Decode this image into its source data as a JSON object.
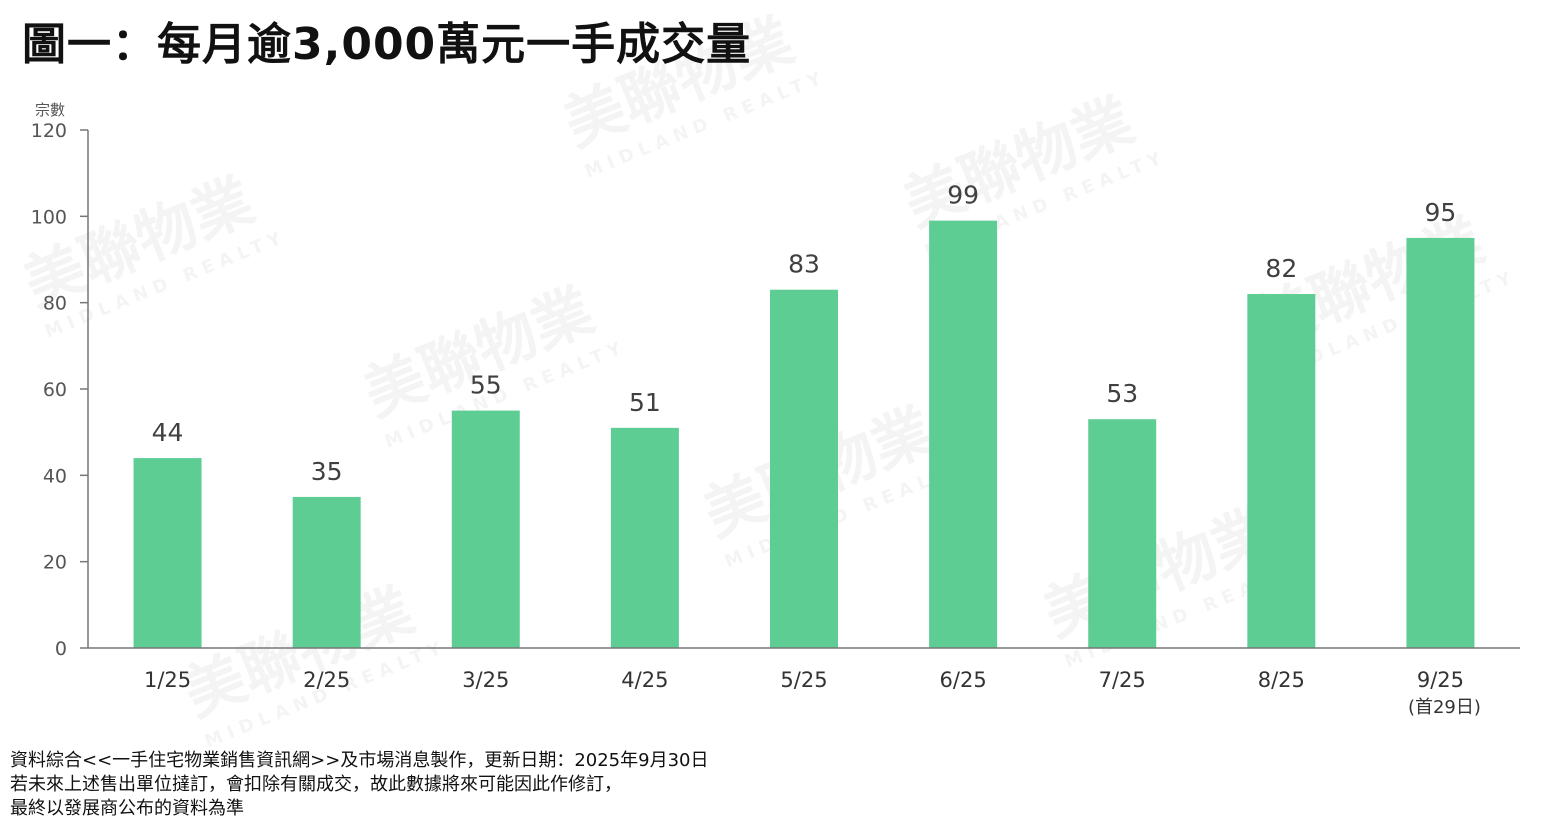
{
  "title": "圖一：每月逾3,000萬元一手成交量",
  "watermark": {
    "text": "美聯物業",
    "sub": "MIDLAND REALTY"
  },
  "chart_data": {
    "type": "bar",
    "title": "圖一：每月逾3,000萬元一手成交量",
    "ylabel": "宗數",
    "xlabel": "",
    "categories": [
      "1/25",
      "2/25",
      "3/25",
      "4/25",
      "5/25",
      "6/25",
      "7/25",
      "8/25",
      "9/25"
    ],
    "category_notes": [
      "",
      "",
      "",
      "",
      "",
      "",
      "",
      "",
      "(首29日)"
    ],
    "values": [
      44,
      35,
      55,
      51,
      83,
      99,
      53,
      82,
      95
    ],
    "ylim": [
      0,
      120
    ],
    "yticks": [
      0,
      20,
      40,
      60,
      80,
      100,
      120
    ],
    "grid": false,
    "data_labels": true,
    "bar_color": "#5ECD93"
  },
  "footer": [
    "資料綜合<<一手住宅物業銷售資訊網>>及市場消息製作，更新日期：2025年9月30日",
    "若未來上述售出單位撻訂，會扣除有關成交，故此數據將來可能因此作修訂，",
    "最終以發展商公布的資料為準"
  ]
}
